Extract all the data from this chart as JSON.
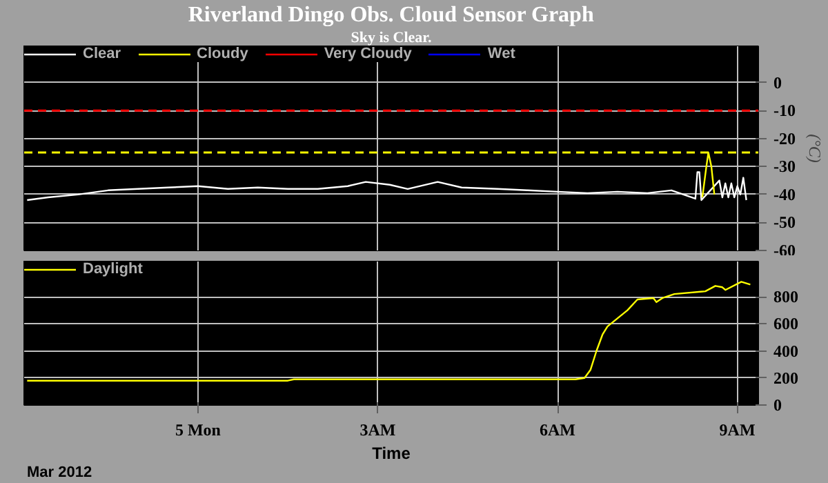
{
  "chart_data": [
    {
      "type": "line",
      "title": "Riverland Dingo Obs. Cloud Sensor Graph",
      "subtitle": "Sky is Clear.",
      "ylabel": "(°C)",
      "xlim": [
        "2012-03-04T21:06",
        "2012-03-05T09:21"
      ],
      "xticks": [
        {
          "value": "2012-03-05T00:00",
          "label": null
        },
        {
          "value": "2012-03-05T03:00",
          "label": null
        },
        {
          "value": "2012-03-05T06:00",
          "label": null
        },
        {
          "value": "2012-03-05T09:00",
          "label": null
        }
      ],
      "ylim": [
        -60,
        13
      ],
      "yticks": [
        0,
        -10,
        -20,
        -30,
        -40,
        -50,
        -60
      ],
      "grid": true,
      "legend": "top left",
      "tick_labels": "y",
      "ref_lines": [
        {
          "axis": "y",
          "value": -10,
          "color": "#ff0000",
          "line_style": "dashed"
        },
        {
          "axis": "y",
          "value": -25,
          "color": "#ffff00",
          "line_style": "dashed"
        }
      ],
      "series": [
        {
          "name": "Clear",
          "color": "#ffffff",
          "x": [
            "2012-03-04T21:09",
            "2012-03-04T21:30",
            "2012-03-04T22:00",
            "2012-03-04T22:30",
            "2012-03-04T23:00",
            "2012-03-04T23:30",
            "2012-03-05T00:00",
            "2012-03-05T00:30",
            "2012-03-05T01:00",
            "2012-03-05T01:30",
            "2012-03-05T02:00",
            "2012-03-05T02:30",
            "2012-03-05T02:48",
            "2012-03-05T03:12",
            "2012-03-05T03:30",
            "2012-03-05T04:00",
            "2012-03-05T04:24",
            "2012-03-05T05:00",
            "2012-03-05T05:30",
            "2012-03-05T06:00",
            "2012-03-05T06:30",
            "2012-03-05T07:00",
            "2012-03-05T07:30",
            "2012-03-05T07:54",
            "2012-03-05T08:06",
            "2012-03-05T08:18",
            "2012-03-05T08:20",
            "2012-03-05T08:22",
            "2012-03-05T08:24",
            "2012-03-05T08:42",
            "2012-03-05T08:45",
            "2012-03-05T08:48",
            "2012-03-05T08:51",
            "2012-03-05T08:54",
            "2012-03-05T08:57",
            "2012-03-05T09:00",
            "2012-03-05T09:03",
            "2012-03-05T09:06",
            "2012-03-05T09:09"
          ],
          "values": [
            -42,
            -41,
            -40,
            -38.5,
            -38,
            -37.5,
            -37,
            -38,
            -37.5,
            -38,
            -38,
            -37,
            -35.5,
            -36.5,
            -38,
            -35.5,
            -37.5,
            -38,
            -38.5,
            -39,
            -39.5,
            -39,
            -39.5,
            -38.5,
            -40,
            -41.5,
            -32,
            -32,
            -42,
            -35,
            -41,
            -36,
            -41,
            -36,
            -41,
            -37,
            -40,
            -34,
            -42
          ]
        },
        {
          "name": "Cloudy",
          "color": "#ffff00",
          "x": [
            "2012-03-05T08:25",
            "2012-03-05T08:29",
            "2012-03-05T08:31",
            "2012-03-05T08:34",
            "2012-03-05T08:37"
          ],
          "values": [
            -41,
            -30,
            -25,
            -30,
            -40
          ]
        },
        {
          "name": "Very Cloudy",
          "color": "#ff0000"
        },
        {
          "name": "Wet",
          "color": "#0000ff"
        }
      ]
    },
    {
      "type": "line",
      "xlabel": "Time",
      "annotations": [
        "Mar 2012"
      ],
      "xlim": [
        "2012-03-04T21:06",
        "2012-03-05T09:21"
      ],
      "xticks": [
        {
          "value": "2012-03-05T00:00",
          "label": "5 Mon"
        },
        {
          "value": "2012-03-05T03:00",
          "label": "3AM"
        },
        {
          "value": "2012-03-05T06:00",
          "label": "6AM"
        },
        {
          "value": "2012-03-05T09:00",
          "label": "9AM"
        }
      ],
      "ylim": [
        0,
        1060
      ],
      "yticks": [
        0,
        200,
        400,
        600,
        800
      ],
      "grid": true,
      "legend": "top left",
      "series": [
        {
          "name": "Daylight",
          "color": "#ffff00",
          "x": [
            "2012-03-04T21:09",
            "2012-03-05T01:30",
            "2012-03-05T01:36",
            "2012-03-05T06:18",
            "2012-03-05T06:27",
            "2012-03-05T06:33",
            "2012-03-05T06:39",
            "2012-03-05T06:45",
            "2012-03-05T06:50",
            "2012-03-05T07:00",
            "2012-03-05T07:10",
            "2012-03-05T07:20",
            "2012-03-05T07:36",
            "2012-03-05T07:39",
            "2012-03-05T07:45",
            "2012-03-05T07:57",
            "2012-03-05T08:28",
            "2012-03-05T08:38",
            "2012-03-05T08:45",
            "2012-03-05T08:48",
            "2012-03-05T09:04",
            "2012-03-05T09:13"
          ],
          "values": [
            180,
            180,
            190,
            190,
            200,
            260,
            400,
            520,
            580,
            640,
            700,
            780,
            790,
            760,
            790,
            820,
            840,
            880,
            870,
            850,
            910,
            890
          ]
        }
      ]
    }
  ]
}
